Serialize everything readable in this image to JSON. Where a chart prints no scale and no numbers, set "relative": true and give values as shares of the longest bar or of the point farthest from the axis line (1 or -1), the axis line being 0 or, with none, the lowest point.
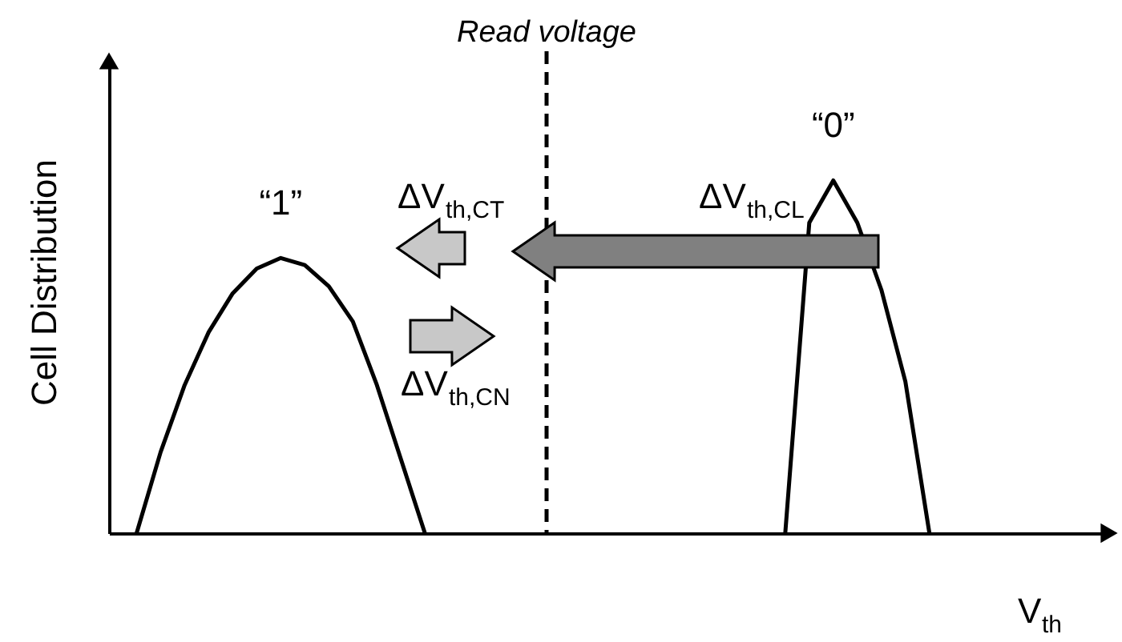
{
  "chart_data": {
    "type": "line",
    "relative": true,
    "ylabel": "Cell Distribution",
    "xlabel": "V$_{th}$",
    "grid": false,
    "marker": "none",
    "line_style": "solid",
    "categories": [
      null,
      null,
      null,
      null,
      null,
      null,
      null,
      null,
      null,
      null,
      null,
      null,
      null,
      null,
      null,
      null,
      null,
      null,
      null,
      null,
      null,
      null,
      null,
      null,
      null,
      null,
      null,
      null,
      null,
      null,
      null,
      null,
      null,
      null,
      null,
      null,
      null,
      null,
      null,
      null,
      null,
      null
    ],
    "series": [
      {
        "name": "“1”",
        "color": "#000000",
        "values": [
          null,
          0,
          0.23,
          0.42,
          0.57,
          0.68,
          0.75,
          0.78,
          0.76,
          0.7,
          0.6,
          0.42,
          0.21,
          0,
          null,
          null,
          null,
          null,
          null,
          null,
          null,
          null,
          null,
          null,
          null,
          null,
          null,
          null,
          null,
          null,
          null,
          null,
          null,
          null,
          null,
          null,
          null,
          null,
          null,
          null,
          null,
          null
        ]
      },
      {
        "name": "“0”",
        "color": "#000000",
        "values": [
          null,
          null,
          null,
          null,
          null,
          null,
          null,
          null,
          null,
          null,
          null,
          null,
          null,
          null,
          null,
          null,
          null,
          null,
          null,
          null,
          null,
          null,
          null,
          null,
          null,
          null,
          null,
          null,
          0,
          0.88,
          1,
          0.88,
          0.69,
          0.43,
          0,
          null,
          null,
          null,
          null,
          null,
          null,
          null
        ]
      }
    ],
    "annotations": [
      "Read voltage",
      "ΔV$_{th,CT}$",
      "ΔV$_{th,CL}$",
      "ΔV$_{th,CN}$"
    ]
  }
}
